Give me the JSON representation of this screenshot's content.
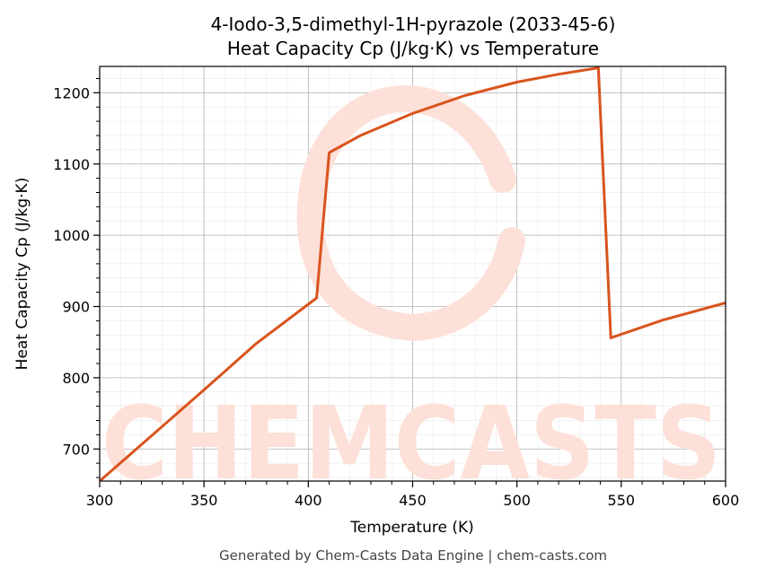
{
  "chart_data": {
    "type": "line",
    "title": "4-Iodo-3,5-dimethyl-1H-pyrazole (2033-45-6)",
    "subtitle": "Heat Capacity Cp (J/kg·K) vs Temperature",
    "xlabel": "Temperature (K)",
    "ylabel": "Heat Capacity Cp (J/kg·K)",
    "xlim": [
      300,
      600
    ],
    "ylim": [
      655,
      1237
    ],
    "x_ticks": [
      300,
      350,
      400,
      450,
      500,
      550,
      600
    ],
    "y_ticks": [
      700,
      800,
      900,
      1000,
      1100,
      1200
    ],
    "grid": true,
    "series": [
      {
        "color": "#d9541e",
        "x": [
          300,
          325,
          350,
          375,
          404,
          410,
          425,
          450,
          475,
          500,
          520,
          539,
          545,
          570,
          600
        ],
        "y": [
          655,
          719,
          783,
          848,
          912,
          1116,
          1140,
          1171,
          1196,
          1215,
          1226,
          1235,
          856,
          881,
          905
        ]
      }
    ]
  },
  "watermark": {
    "text": "CHEMCASTS",
    "color": "#fde0d8"
  },
  "footer": "Generated by Chem-Casts Data Engine | chem-casts.com"
}
